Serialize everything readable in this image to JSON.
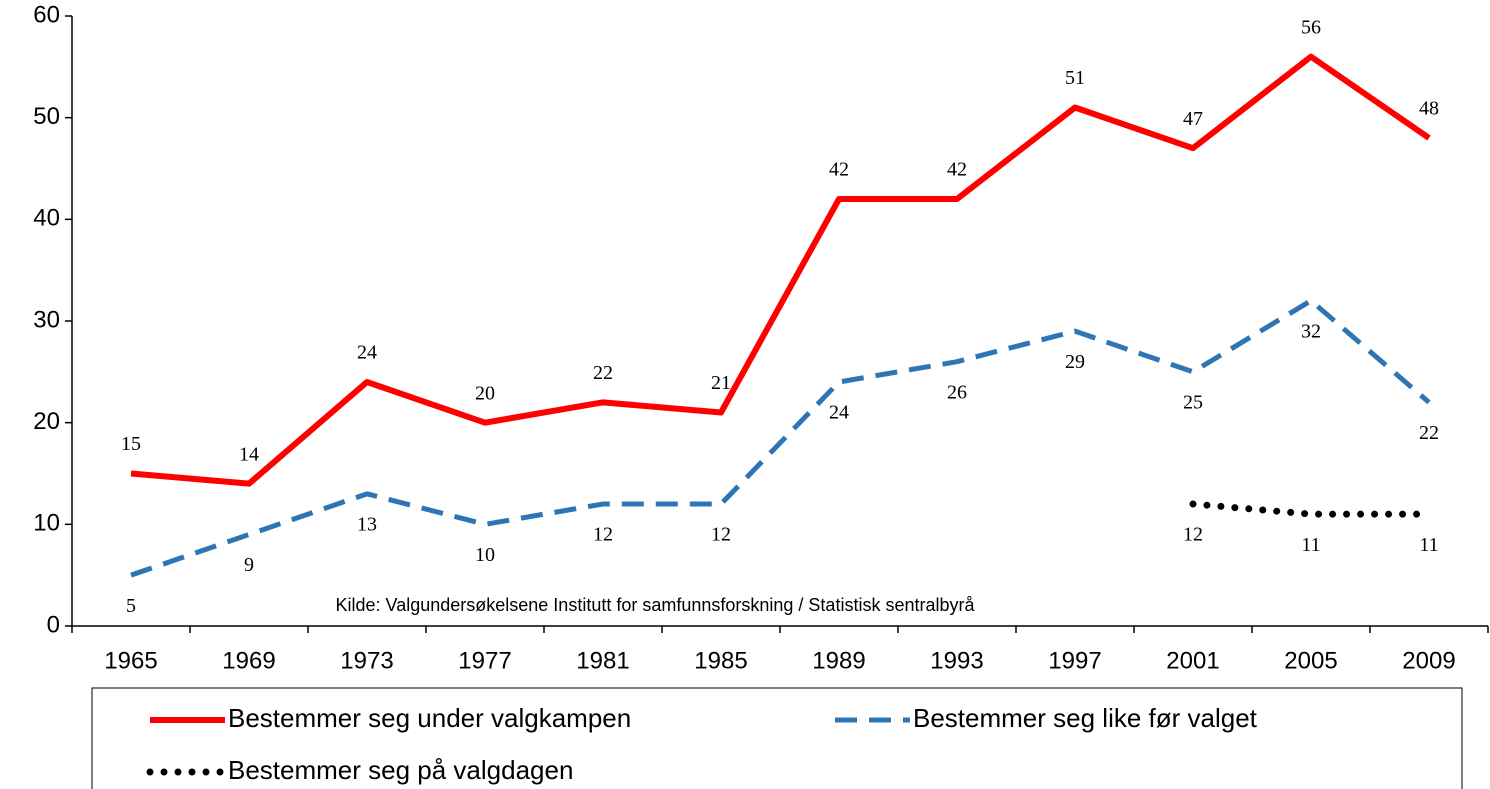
{
  "chart_data": {
    "type": "line",
    "annotation": "Kilde: Valgundersøkelsene Institutt for samfunnsforskning / Statistisk sentralbyrå",
    "categories": [
      "1965",
      "1969",
      "1973",
      "1977",
      "1981",
      "1985",
      "1989",
      "1993",
      "1997",
      "2001",
      "2005",
      "2009"
    ],
    "series": [
      {
        "name": "Bestemmer seg under valgkampen",
        "color": "#ff0000",
        "dash": "solid",
        "values": [
          15,
          14,
          24,
          20,
          22,
          21,
          42,
          42,
          51,
          47,
          56,
          48
        ]
      },
      {
        "name": "Bestemmer seg like før valget",
        "color": "#2e75b6",
        "dash": "dashed",
        "values": [
          5,
          9,
          13,
          10,
          12,
          12,
          24,
          26,
          29,
          25,
          32,
          22
        ]
      },
      {
        "name": "Bestemmer seg på valgdagen",
        "color": "#000000",
        "dash": "dotted",
        "values": [
          null,
          null,
          null,
          null,
          null,
          null,
          null,
          null,
          null,
          12,
          11,
          11
        ]
      }
    ],
    "ylim": [
      0,
      60
    ],
    "yticks": [
      0,
      10,
      20,
      30,
      40,
      50,
      60
    ]
  }
}
